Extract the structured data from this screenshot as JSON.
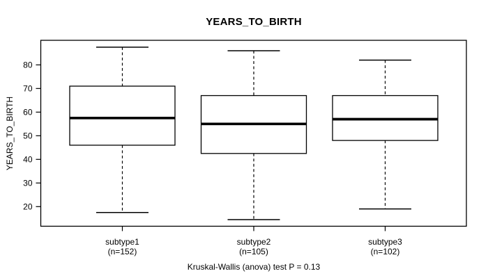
{
  "figure": {
    "title": "YEARS_TO_BIRTH",
    "caption": "Kruskal-Wallis (anova) test P = 0.13"
  },
  "chart_data": {
    "type": "boxplot",
    "title": "YEARS_TO_BIRTH",
    "ylabel": "YEARS_TO_BIRTH",
    "xlabel": "",
    "caption": "Kruskal-Wallis (anova) test P = 0.13",
    "ylim": [
      11.7,
      90.4
    ],
    "yticks": [
      20,
      30,
      40,
      50,
      60,
      70,
      80
    ],
    "grid": false,
    "legend": "none",
    "categories": [
      "subtype1",
      "subtype2",
      "subtype3"
    ],
    "category_counts": [
      "(n=152)",
      "(n=105)",
      "(n=102)"
    ],
    "series": [
      {
        "name": "subtype1",
        "n": 152,
        "whisker_low": 17.5,
        "q1": 46.0,
        "median": 57.5,
        "q3": 71.0,
        "whisker_high": 87.5
      },
      {
        "name": "subtype2",
        "n": 105,
        "whisker_low": 14.5,
        "q1": 42.5,
        "median": 55.0,
        "q3": 67.0,
        "whisker_high": 86.0
      },
      {
        "name": "subtype3",
        "n": 102,
        "whisker_low": 19.0,
        "q1": 48.0,
        "median": 57.0,
        "q3": 67.0,
        "whisker_high": 82.0
      }
    ],
    "colors": {
      "stroke": "#000000",
      "box_fill": "#ffffff",
      "background": "#ffffff"
    }
  }
}
